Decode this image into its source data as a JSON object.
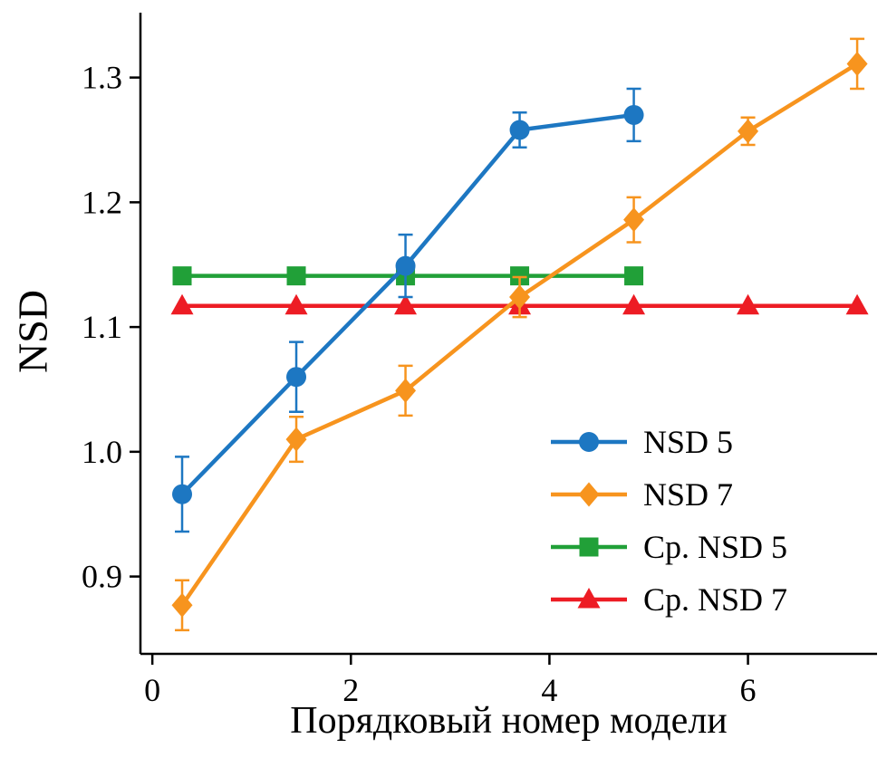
{
  "chart_data": {
    "type": "line",
    "title": "",
    "xlabel": "Порядковый номер модели",
    "ylabel": "NSD",
    "xlim": [
      -0.12,
      7.3
    ],
    "ylim": [
      0.838,
      1.352
    ],
    "grid": false,
    "xticks": [
      {
        "v": 0,
        "label": "0"
      },
      {
        "v": 2,
        "label": "2"
      },
      {
        "v": 4,
        "label": "4"
      },
      {
        "v": 6,
        "label": "6"
      }
    ],
    "yticks": [
      {
        "v": 0.9,
        "label": "0.9"
      },
      {
        "v": 1.0,
        "label": "1.0"
      },
      {
        "v": 1.1,
        "label": "1.1"
      },
      {
        "v": 1.2,
        "label": "1.2"
      },
      {
        "v": 1.3,
        "label": "1.3"
      }
    ],
    "legend": {
      "position": "lower-right",
      "items": [
        "NSD 5",
        "NSD 7",
        "Ср. NSD 5",
        "Ср. NSD 7"
      ]
    },
    "series": [
      {
        "name": "NSD 5",
        "color": "#1d77c2",
        "marker": "circle",
        "x": [
          0.3,
          1.45,
          2.55,
          3.7,
          4.85
        ],
        "y": [
          0.966,
          1.06,
          1.149,
          1.258,
          1.27
        ],
        "yerr": [
          0.03,
          0.028,
          0.025,
          0.014,
          0.021
        ]
      },
      {
        "name": "NSD 7",
        "color": "#f7941e",
        "marker": "diamond",
        "x": [
          0.3,
          1.45,
          2.55,
          3.7,
          4.85,
          6.0,
          7.1
        ],
        "y": [
          0.877,
          1.01,
          1.049,
          1.124,
          1.186,
          1.257,
          1.311
        ],
        "yerr": [
          0.02,
          0.018,
          0.02,
          0.016,
          0.018,
          0.011,
          0.02
        ]
      },
      {
        "name": "Ср. NSD 5",
        "color": "#21a038",
        "marker": "square",
        "x": [
          0.3,
          1.45,
          2.55,
          3.7,
          4.85
        ],
        "y": [
          1.141,
          1.141,
          1.141,
          1.141,
          1.141
        ]
      },
      {
        "name": "Ср. NSD 7",
        "color": "#ed1c24",
        "marker": "triangle",
        "x": [
          0.3,
          1.45,
          2.55,
          3.7,
          4.85,
          6.0,
          7.1
        ],
        "y": [
          1.117,
          1.117,
          1.117,
          1.117,
          1.117,
          1.117,
          1.117
        ]
      }
    ]
  }
}
